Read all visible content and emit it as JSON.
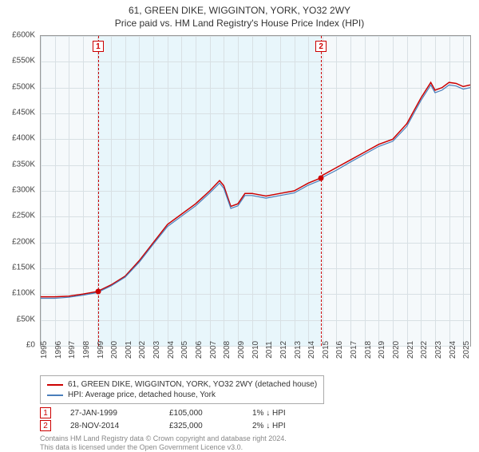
{
  "title_line1": "61, GREEN DIKE, WIGGINTON, YORK, YO32 2WY",
  "title_line2": "Price paid vs. HM Land Registry's House Price Index (HPI)",
  "chart": {
    "type": "line",
    "plot_background": "#f5f9fb",
    "grid_color": "#d8e0e4",
    "border_color": "#999999",
    "shade_color": "#e8f6fb",
    "x": {
      "min": 1995,
      "max": 2025.5,
      "ticks": [
        1995,
        1996,
        1997,
        1998,
        1999,
        2000,
        2001,
        2002,
        2003,
        2004,
        2005,
        2006,
        2007,
        2008,
        2009,
        2010,
        2011,
        2012,
        2013,
        2014,
        2015,
        2016,
        2017,
        2018,
        2019,
        2020,
        2021,
        2022,
        2023,
        2024,
        2025
      ],
      "label_fontsize": 10
    },
    "y": {
      "min": 0,
      "max": 600000,
      "step": 50000,
      "prefix": "£",
      "thousands": "K",
      "label_fontsize": 10
    },
    "series": [
      {
        "name": "61, GREEN DIKE, WIGGINTON, YORK, YO32 2WY (detached house)",
        "color": "#cc0000",
        "width": 1.5,
        "points": [
          [
            1995,
            95000
          ],
          [
            1996,
            95000
          ],
          [
            1997,
            96000
          ],
          [
            1998,
            100000
          ],
          [
            1999,
            105000
          ],
          [
            2000,
            118000
          ],
          [
            2001,
            135000
          ],
          [
            2002,
            165000
          ],
          [
            2003,
            200000
          ],
          [
            2004,
            235000
          ],
          [
            2005,
            255000
          ],
          [
            2006,
            275000
          ],
          [
            2007,
            300000
          ],
          [
            2007.7,
            320000
          ],
          [
            2008,
            310000
          ],
          [
            2008.5,
            270000
          ],
          [
            2009,
            275000
          ],
          [
            2009.5,
            295000
          ],
          [
            2010,
            295000
          ],
          [
            2011,
            290000
          ],
          [
            2012,
            295000
          ],
          [
            2013,
            300000
          ],
          [
            2014,
            315000
          ],
          [
            2014.9,
            325000
          ],
          [
            2015,
            330000
          ],
          [
            2016,
            345000
          ],
          [
            2017,
            360000
          ],
          [
            2018,
            375000
          ],
          [
            2019,
            390000
          ],
          [
            2020,
            400000
          ],
          [
            2021,
            430000
          ],
          [
            2021.5,
            455000
          ],
          [
            2022,
            480000
          ],
          [
            2022.7,
            510000
          ],
          [
            2023,
            495000
          ],
          [
            2023.5,
            500000
          ],
          [
            2024,
            510000
          ],
          [
            2024.5,
            508000
          ],
          [
            2025,
            502000
          ],
          [
            2025.5,
            505000
          ]
        ]
      },
      {
        "name": "HPI: Average price, detached house, York",
        "color": "#4a7ebb",
        "width": 1.2,
        "points": [
          [
            1995,
            92000
          ],
          [
            1996,
            92000
          ],
          [
            1997,
            94000
          ],
          [
            1998,
            98000
          ],
          [
            1999,
            103000
          ],
          [
            2000,
            116000
          ],
          [
            2001,
            133000
          ],
          [
            2002,
            162000
          ],
          [
            2003,
            197000
          ],
          [
            2004,
            231000
          ],
          [
            2005,
            251000
          ],
          [
            2006,
            271000
          ],
          [
            2007,
            296000
          ],
          [
            2007.7,
            315000
          ],
          [
            2008,
            305000
          ],
          [
            2008.5,
            266000
          ],
          [
            2009,
            271000
          ],
          [
            2009.5,
            291000
          ],
          [
            2010,
            291000
          ],
          [
            2011,
            286000
          ],
          [
            2012,
            291000
          ],
          [
            2013,
            296000
          ],
          [
            2014,
            311000
          ],
          [
            2014.9,
            321000
          ],
          [
            2015,
            326000
          ],
          [
            2016,
            340000
          ],
          [
            2017,
            356000
          ],
          [
            2018,
            371000
          ],
          [
            2019,
            386000
          ],
          [
            2020,
            396000
          ],
          [
            2021,
            425000
          ],
          [
            2021.5,
            450000
          ],
          [
            2022,
            475000
          ],
          [
            2022.7,
            505000
          ],
          [
            2023,
            490000
          ],
          [
            2023.5,
            495000
          ],
          [
            2024,
            505000
          ],
          [
            2024.5,
            503000
          ],
          [
            2025,
            497000
          ],
          [
            2025.5,
            500000
          ]
        ]
      }
    ],
    "markers": [
      {
        "n": "1",
        "x": 1999.08,
        "y": 105000,
        "date": "27-JAN-1999",
        "price": "£105,000",
        "delta": "1% ↓ HPI",
        "badge_border": "#cc0000",
        "line_color": "#cc0000",
        "dot_color": "#cc0000"
      },
      {
        "n": "2",
        "x": 2014.91,
        "y": 325000,
        "date": "28-NOV-2014",
        "price": "£325,000",
        "delta": "2% ↓ HPI",
        "badge_border": "#cc0000",
        "line_color": "#cc0000",
        "dot_color": "#cc0000"
      }
    ],
    "shade_range": [
      1999.08,
      2014.91
    ]
  },
  "legend": {
    "series1_label": "61, GREEN DIKE, WIGGINTON, YORK, YO32 2WY (detached house)",
    "series2_label": "HPI: Average price, detached house, York"
  },
  "footer": {
    "line1": "Contains HM Land Registry data © Crown copyright and database right 2024.",
    "line2": "This data is licensed under the Open Government Licence v3.0."
  }
}
